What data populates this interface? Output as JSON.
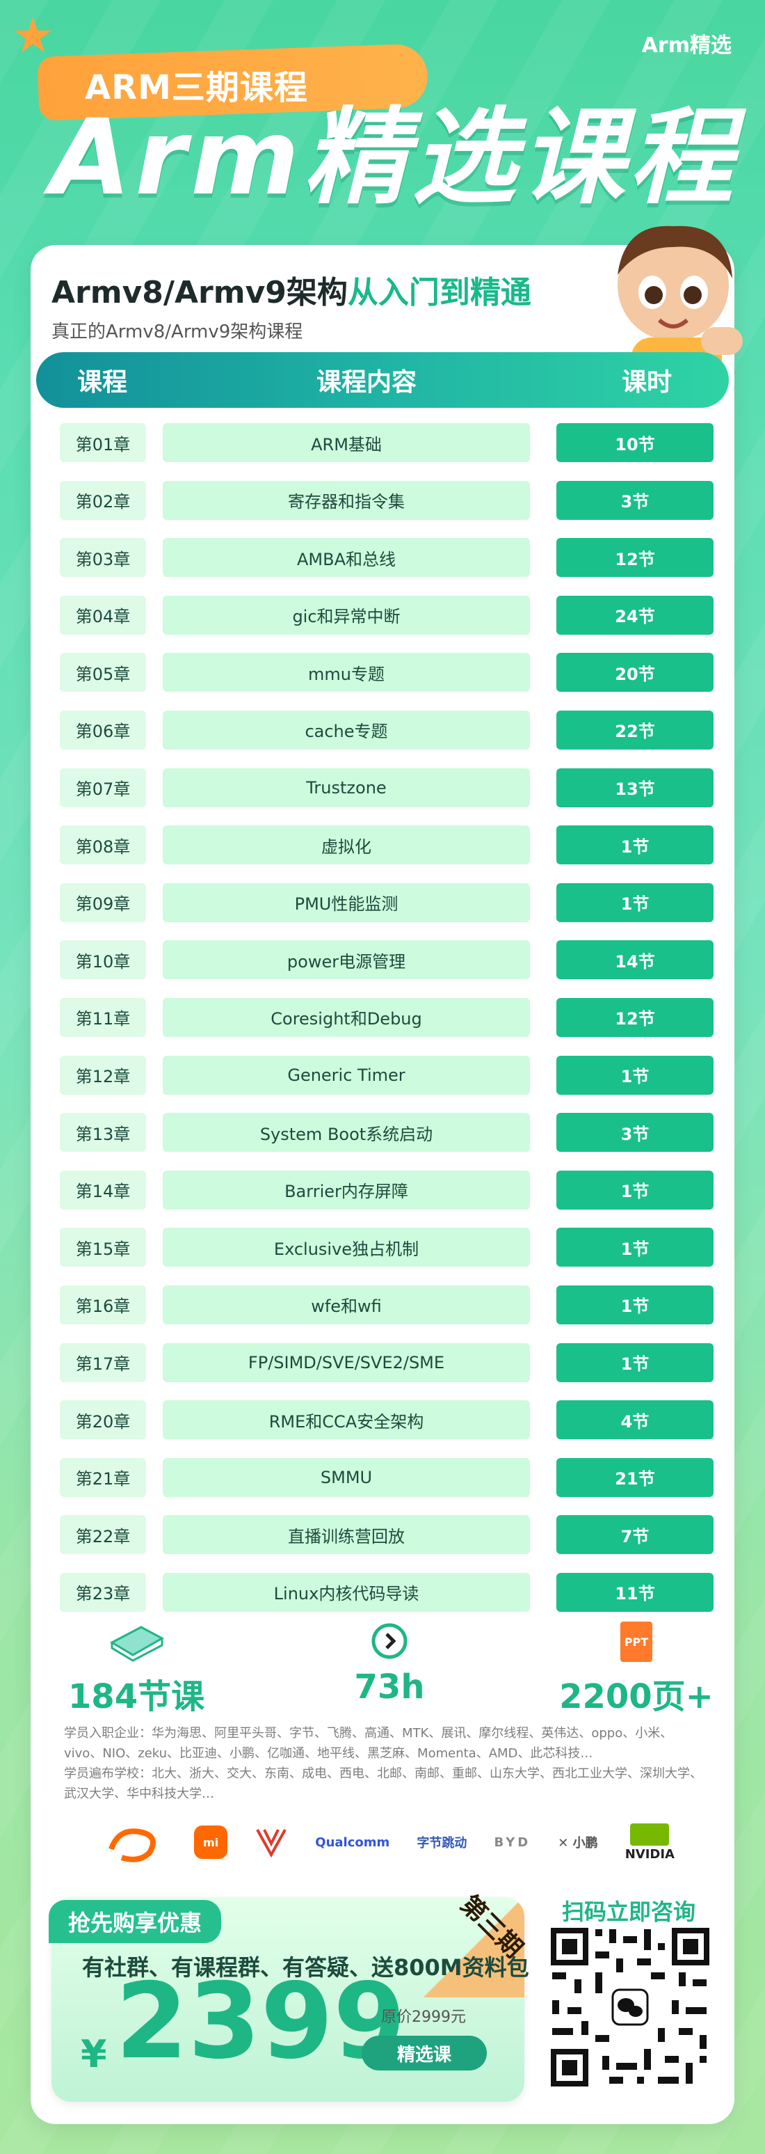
{
  "brand_top_right": "Arm精选",
  "banner_label": "ARM三期课程",
  "main_title": "Arm精选课程",
  "subtitle_prefix": "Armv8/Armv9架构",
  "subtitle_highlight": "从入门到精通",
  "description": "真正的Armv8/Armv9架构课程",
  "table_headers": {
    "chapter": "课程",
    "content": "课程内容",
    "hours": "课时"
  },
  "chapters": [
    {
      "chapter": "第01章",
      "content": "ARM基础",
      "hours": "10节"
    },
    {
      "chapter": "第02章",
      "content": "寄存器和指令集",
      "hours": "3节"
    },
    {
      "chapter": "第03章",
      "content": "AMBA和总线",
      "hours": "12节"
    },
    {
      "chapter": "第04章",
      "content": "gic和异常中断",
      "hours": "24节"
    },
    {
      "chapter": "第05章",
      "content": "mmu专题",
      "hours": "20节"
    },
    {
      "chapter": "第06章",
      "content": "cache专题",
      "hours": "22节"
    },
    {
      "chapter": "第07章",
      "content": "Trustzone",
      "hours": "13节"
    },
    {
      "chapter": "第08章",
      "content": "虚拟化",
      "hours": "1节"
    },
    {
      "chapter": "第09章",
      "content": "PMU性能监测",
      "hours": "1节"
    },
    {
      "chapter": "第10章",
      "content": "power电源管理",
      "hours": "14节"
    },
    {
      "chapter": "第11章",
      "content": "Coresight和Debug",
      "hours": "12节"
    },
    {
      "chapter": "第12章",
      "content": "Generic Timer",
      "hours": "1节"
    },
    {
      "chapter": "第13章",
      "content": "System Boot系统启动",
      "hours": "3节"
    },
    {
      "chapter": "第14章",
      "content": "Barrier内存屏障",
      "hours": "1节"
    },
    {
      "chapter": "第15章",
      "content": "Exclusive独占机制",
      "hours": "1节"
    },
    {
      "chapter": "第16章",
      "content": "wfe和wfi",
      "hours": "1节"
    },
    {
      "chapter": "第17章",
      "content": "FP/SIMD/SVE/SVE2/SME",
      "hours": "1节"
    },
    {
      "chapter": "第20章",
      "content": "RME和CCA安全架构",
      "hours": "4节"
    },
    {
      "chapter": "第21章",
      "content": "SMMU",
      "hours": "21节"
    },
    {
      "chapter": "第22章",
      "content": "直播训练营回放",
      "hours": "7节"
    },
    {
      "chapter": "第23章",
      "content": "Linux内核代码导读",
      "hours": "11节"
    }
  ],
  "stats": {
    "lessons": "184节课",
    "duration": "73h",
    "pages": "2200页+",
    "ppt_badge": "PPT"
  },
  "notes": {
    "companies": "学员入职企业：华为海思、阿里平头哥、字节、飞腾、高通、MTK、展讯、摩尔线程、英伟达、oppo、小米、vivo、NIO、zeku、比亚迪、小鹏、亿咖通、地平线、黑芝麻、Momenta、AMD、此芯科技…",
    "schools": "学员遍布学校：北大、浙大、交大、东南、成电、西电、北邮、南邮、重邮、山东大学、西北工业大学、深圳大学、武汉大学、华中科技大学…"
  },
  "logos": [
    "Qualcomm",
    "字节跳动",
    "小鹏",
    "NVIDIA"
  ],
  "promo": {
    "tag": "抢先购享优惠",
    "corner": "第三期",
    "line": "有社群、有课程群、有答疑、送800M资料包",
    "currency": "¥",
    "price": "2399",
    "original": "原价2999元",
    "button": "精选课"
  },
  "qr_label": "扫码立即咨询",
  "colors": {
    "accent": "#1fb686",
    "ribbon": "#ffa23b",
    "row_light": "#cdfbdd",
    "row_hours": "#19c08a"
  }
}
